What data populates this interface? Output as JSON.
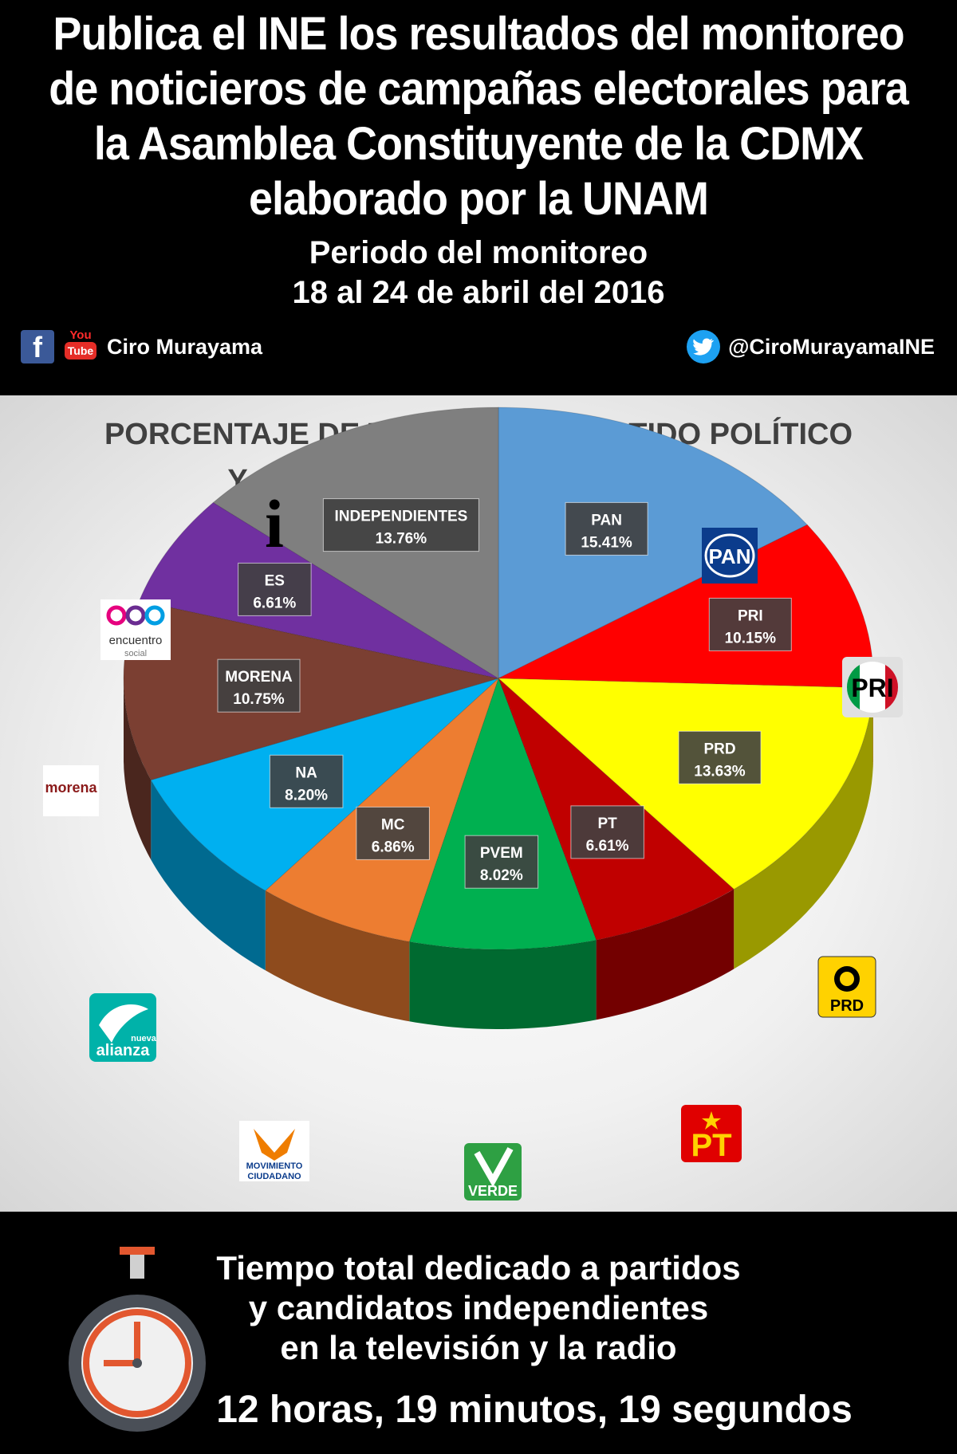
{
  "header": {
    "headline_lines": [
      "Publica el INE los resultados del monitoreo",
      "de noticieros de campañas electorales para",
      "la Asamblea Constituyente de la CDMX",
      "elaborado por la UNAM"
    ],
    "period_lines": [
      "Periodo del monitoreo",
      "18 al 24 de abril del 2016"
    ],
    "social": {
      "facebook_icon": "f",
      "youtube_you": "You",
      "youtube_tube": "Tube",
      "name": "Ciro Murayama",
      "twitter_handle": "@CiroMurayamaINE"
    }
  },
  "chart_data": {
    "type": "pie",
    "title_lines": [
      "PORCENTAJE DE TIEMPO POR PARTIDO POLÍTICO",
      "Y CANDIDATOS INDEPENDIENTES"
    ],
    "categories": [
      "PAN",
      "PRI",
      "PRD",
      "PT",
      "PVEM",
      "MC",
      "NA",
      "MORENA",
      "ES",
      "INDEPENDIENTES"
    ],
    "values": [
      15.41,
      10.15,
      13.63,
      6.61,
      8.02,
      6.86,
      8.2,
      10.75,
      6.61,
      13.76
    ],
    "labels": [
      "15.41%",
      "10.15%",
      "13.63%",
      "6.61%",
      "8.02%",
      "6.86%",
      "8.20%",
      "10.75%",
      "6.61%",
      "13.76%"
    ],
    "colors": [
      "#5b9bd5",
      "#ff0000",
      "#ffff00",
      "#c00000",
      "#00b050",
      "#ed7d31",
      "#00b0f0",
      "#7b3f32",
      "#7030a0",
      "#7f7f7f"
    ],
    "logos": {
      "PAN": "PAN",
      "PRI": "PRI",
      "PRD": "PRD",
      "PT": "PT",
      "PVEM": "VERDE",
      "MC_line1": "MOVIMIENTO",
      "MC_line2": "CIUDADANO",
      "NA_line1": "nueva",
      "NA_line2": "alianza",
      "MORENA": "morena",
      "ES_line1": "encuentro",
      "ES_line2": "social",
      "IND": "i"
    }
  },
  "footer": {
    "text_lines": [
      "Tiempo total dedicado a partidos",
      "y candidatos independientes",
      "en la televisión y la radio"
    ],
    "total_time": "12 horas, 19 minutos, 19 segundos"
  }
}
